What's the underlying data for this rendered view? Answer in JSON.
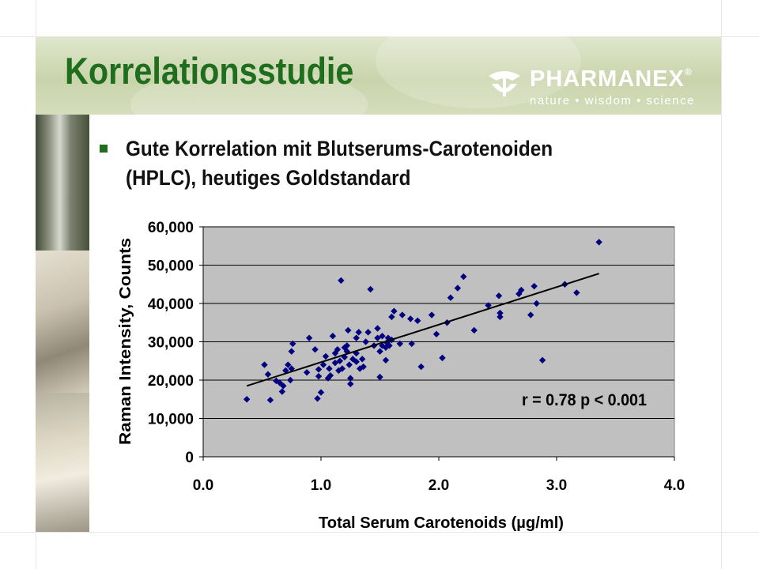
{
  "slide": {
    "title": "Korrelationsstudie",
    "bullet": "Gute Korrelation mit Blutserums-Carotenoiden (HPLC), heutiges Goldstandard",
    "colors": {
      "title": "#1e6e1e",
      "bullet_marker": "#1e6e1e",
      "header_band": "#cfd8b4",
      "plot_background": "#c0c0c0",
      "points": "#000080"
    }
  },
  "logo": {
    "brand": "PHARMANEX",
    "registered": "®",
    "tagline": "nature • wisdom • science"
  },
  "chart_data": {
    "type": "scatter",
    "xlabel": "Total Serum Carotenoids (µg/ml)",
    "ylabel": "Raman Intensity, Counts",
    "xlim": [
      0.0,
      4.0
    ],
    "ylim": [
      0,
      60000
    ],
    "x_ticks": [
      "0.0",
      "1.0",
      "2.0",
      "3.0",
      "4.0"
    ],
    "y_ticks": [
      "0",
      "10,000",
      "20,000",
      "30,000",
      "40,000",
      "50,000",
      "60,000"
    ],
    "grid": "horizontal",
    "annotation": "r = 0.78  p < 0.001",
    "trendline": {
      "x": [
        0.37,
        3.36
      ],
      "y": [
        18500,
        47800
      ]
    },
    "points": [
      [
        0.37,
        15000
      ],
      [
        0.52,
        24000
      ],
      [
        0.55,
        21500
      ],
      [
        0.57,
        14800
      ],
      [
        0.62,
        19800
      ],
      [
        0.65,
        19300
      ],
      [
        0.67,
        17000
      ],
      [
        0.68,
        18500
      ],
      [
        0.7,
        22500
      ],
      [
        0.72,
        24000
      ],
      [
        0.74,
        20000
      ],
      [
        0.75,
        23000
      ],
      [
        0.75,
        27500
      ],
      [
        0.76,
        29500
      ],
      [
        0.88,
        22000
      ],
      [
        0.9,
        31000
      ],
      [
        0.95,
        28000
      ],
      [
        0.97,
        15200
      ],
      [
        0.98,
        21000
      ],
      [
        0.98,
        22800
      ],
      [
        1.0,
        16800
      ],
      [
        1.02,
        24000
      ],
      [
        1.04,
        26200
      ],
      [
        1.06,
        20500
      ],
      [
        1.07,
        23000
      ],
      [
        1.08,
        21200
      ],
      [
        1.1,
        31500
      ],
      [
        1.12,
        24500
      ],
      [
        1.12,
        27000
      ],
      [
        1.14,
        28000
      ],
      [
        1.15,
        22500
      ],
      [
        1.16,
        25000
      ],
      [
        1.17,
        46000
      ],
      [
        1.18,
        23000
      ],
      [
        1.2,
        26000
      ],
      [
        1.2,
        28500
      ],
      [
        1.22,
        27500
      ],
      [
        1.22,
        29000
      ],
      [
        1.23,
        33000
      ],
      [
        1.24,
        24000
      ],
      [
        1.25,
        19000
      ],
      [
        1.25,
        20500
      ],
      [
        1.27,
        25500
      ],
      [
        1.3,
        24800
      ],
      [
        1.3,
        27000
      ],
      [
        1.3,
        31000
      ],
      [
        1.32,
        32500
      ],
      [
        1.33,
        23000
      ],
      [
        1.35,
        25500
      ],
      [
        1.36,
        23500
      ],
      [
        1.38,
        30000
      ],
      [
        1.4,
        32500
      ],
      [
        1.42,
        43700
      ],
      [
        1.45,
        29000
      ],
      [
        1.48,
        31000
      ],
      [
        1.48,
        33500
      ],
      [
        1.5,
        20800
      ],
      [
        1.5,
        27500
      ],
      [
        1.52,
        29000
      ],
      [
        1.52,
        31500
      ],
      [
        1.55,
        25200
      ],
      [
        1.55,
        28500
      ],
      [
        1.56,
        29800
      ],
      [
        1.57,
        31000
      ],
      [
        1.58,
        29000
      ],
      [
        1.6,
        30500
      ],
      [
        1.6,
        36500
      ],
      [
        1.62,
        38000
      ],
      [
        1.67,
        29500
      ],
      [
        1.69,
        37000
      ],
      [
        1.76,
        36000
      ],
      [
        1.77,
        29500
      ],
      [
        1.82,
        35500
      ],
      [
        1.85,
        23500
      ],
      [
        1.94,
        37000
      ],
      [
        1.98,
        32000
      ],
      [
        2.03,
        25800
      ],
      [
        2.07,
        35000
      ],
      [
        2.1,
        41500
      ],
      [
        2.16,
        44000
      ],
      [
        2.21,
        47000
      ],
      [
        2.3,
        33000
      ],
      [
        2.42,
        39500
      ],
      [
        2.51,
        42000
      ],
      [
        2.52,
        36500
      ],
      [
        2.52,
        37500
      ],
      [
        2.68,
        42500
      ],
      [
        2.7,
        43500
      ],
      [
        2.78,
        37000
      ],
      [
        2.81,
        44500
      ],
      [
        2.83,
        40000
      ],
      [
        2.88,
        25200
      ],
      [
        3.07,
        45000
      ],
      [
        3.17,
        42800
      ],
      [
        3.36,
        56000
      ]
    ]
  }
}
